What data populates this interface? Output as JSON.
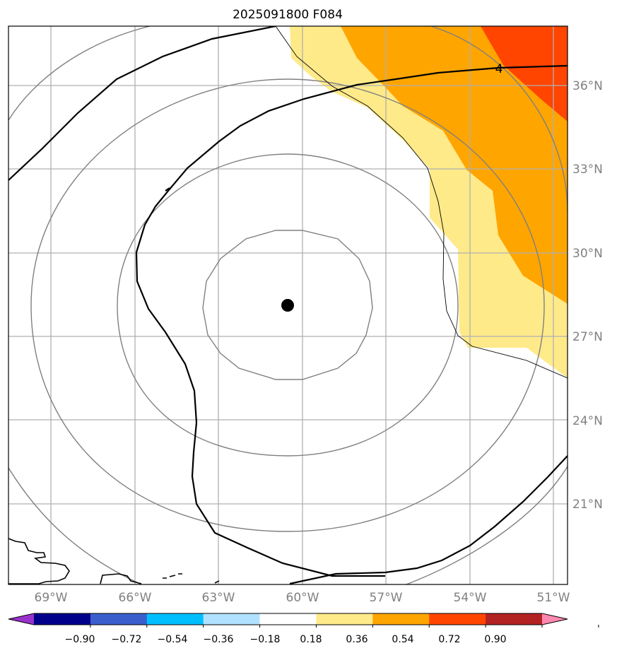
{
  "title": "2025091800 F084",
  "map": {
    "lon_ticks": [
      "69°W",
      "66°W",
      "63°W",
      "60°W",
      "57°W",
      "54°W",
      "51°W"
    ],
    "lat_ticks": [
      "36°N",
      "33°N",
      "30°N",
      "27°N",
      "24°N",
      "21°N"
    ],
    "center_marker": "storm-center-dot",
    "contour_label": "4",
    "colors": {
      "pale_yellow": "#FFEA8A",
      "orange": "#FFA500",
      "red_orange": "#FF4500",
      "contour_gray": "#808080",
      "contour_black": "#000000",
      "coastline": "#000000",
      "grid": "#B0B0B0"
    }
  },
  "colorbar": {
    "ticks": [
      "−0.90",
      "−0.72",
      "−0.54",
      "−0.36",
      "−0.18",
      "0.18",
      "0.36",
      "0.54",
      "0.72",
      "0.90"
    ],
    "colors": [
      "#9932CC",
      "#00008B",
      "#3A5FCD",
      "#00BFFF",
      "#B0E2FF",
      "#FFFFFF",
      "#FFEA8A",
      "#FFA500",
      "#FF4500",
      "#B22222",
      "#FF88B0"
    ]
  }
}
